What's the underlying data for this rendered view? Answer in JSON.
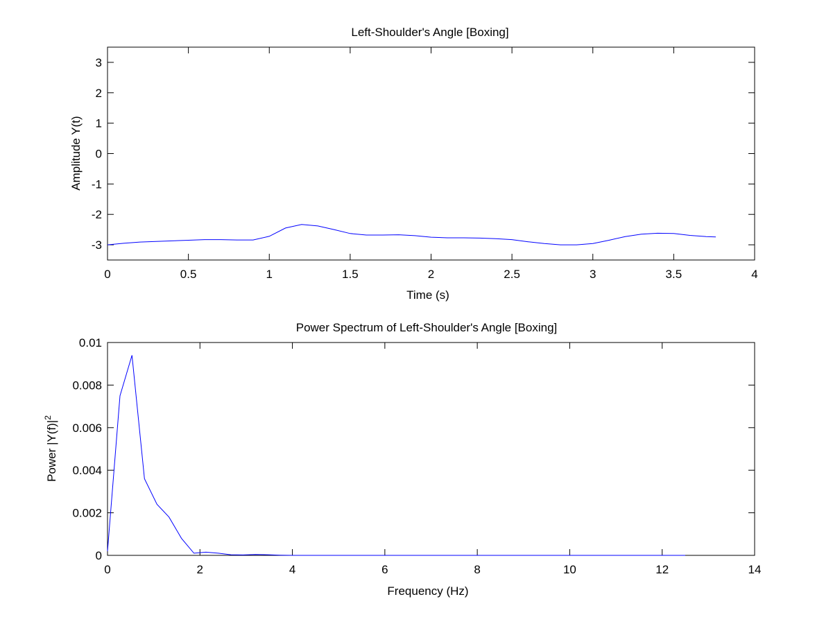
{
  "chart_data": [
    {
      "type": "line",
      "title": "Left-Shoulder's Angle [Boxing]",
      "xlabel": "Time (s)",
      "ylabel": "Amplitude Y(t)",
      "xlim": [
        0,
        4
      ],
      "ylim": [
        -3.5,
        3.5
      ],
      "xticks": [
        0,
        0.5,
        1,
        1.5,
        2,
        2.5,
        3,
        3.5,
        4
      ],
      "xtick_labels": [
        "0",
        "0.5",
        "1",
        "1.5",
        "2",
        "2.5",
        "3",
        "3.5",
        "4"
      ],
      "yticks": [
        3,
        2,
        1,
        0,
        -1,
        -2,
        -3
      ],
      "ytick_labels": [
        "3",
        "2",
        "1",
        "0",
        "-1",
        "-2",
        "-3"
      ],
      "grid": false,
      "line_color": "#0000ff",
      "series": [
        {
          "x": [
            0,
            0.1,
            0.2,
            0.3,
            0.4,
            0.5,
            0.6,
            0.7,
            0.8,
            0.9,
            1.0,
            1.1,
            1.2,
            1.3,
            1.4,
            1.5,
            1.6,
            1.7,
            1.8,
            1.9,
            2.0,
            2.1,
            2.2,
            2.3,
            2.4,
            2.5,
            2.6,
            2.7,
            2.8,
            2.9,
            3.0,
            3.1,
            3.2,
            3.3,
            3.4,
            3.5,
            3.6,
            3.7,
            3.76
          ],
          "values": [
            -3.0,
            -2.95,
            -2.91,
            -2.89,
            -2.87,
            -2.85,
            -2.83,
            -2.83,
            -2.84,
            -2.84,
            -2.72,
            -2.45,
            -2.33,
            -2.38,
            -2.5,
            -2.63,
            -2.68,
            -2.68,
            -2.67,
            -2.7,
            -2.75,
            -2.77,
            -2.77,
            -2.78,
            -2.8,
            -2.83,
            -2.9,
            -2.96,
            -3.0,
            -3.0,
            -2.96,
            -2.85,
            -2.73,
            -2.65,
            -2.62,
            -2.63,
            -2.69,
            -2.73,
            -2.74
          ]
        }
      ]
    },
    {
      "type": "line",
      "title": "Power Spectrum of Left-Shoulder's Angle [Boxing]",
      "xlabel": "Frequency (Hz)",
      "ylabel_main": "Power |Y(f)|",
      "ylabel_sup": "2",
      "xlim": [
        0,
        14
      ],
      "ylim": [
        0,
        0.01
      ],
      "xticks": [
        0,
        2,
        4,
        6,
        8,
        10,
        12,
        14
      ],
      "xtick_labels": [
        "0",
        "2",
        "4",
        "6",
        "8",
        "10",
        "12",
        "14"
      ],
      "yticks": [
        0.01,
        0.008,
        0.006,
        0.004,
        0.002,
        0
      ],
      "ytick_labels": [
        "0.01",
        "0.008",
        "0.006",
        "0.004",
        "0.002",
        "0"
      ],
      "grid": false,
      "line_color": "#0000ff",
      "series": [
        {
          "x": [
            0,
            0.27,
            0.53,
            0.8,
            1.07,
            1.33,
            1.6,
            1.87,
            2.13,
            2.4,
            2.67,
            2.93,
            3.2,
            3.47,
            3.73,
            4.0,
            5.0,
            6.0,
            7.0,
            8.0,
            9.0,
            10.0,
            11.0,
            12.0,
            12.5
          ],
          "values": [
            0.0002,
            0.0075,
            0.0094,
            0.0036,
            0.0024,
            0.0018,
            0.0008,
            0.0001,
            0.00015,
            0.0001,
            3e-05,
            2e-05,
            4e-05,
            3e-05,
            1e-05,
            0,
            0,
            0,
            0,
            0,
            0,
            0,
            0,
            0,
            0
          ]
        }
      ]
    }
  ]
}
